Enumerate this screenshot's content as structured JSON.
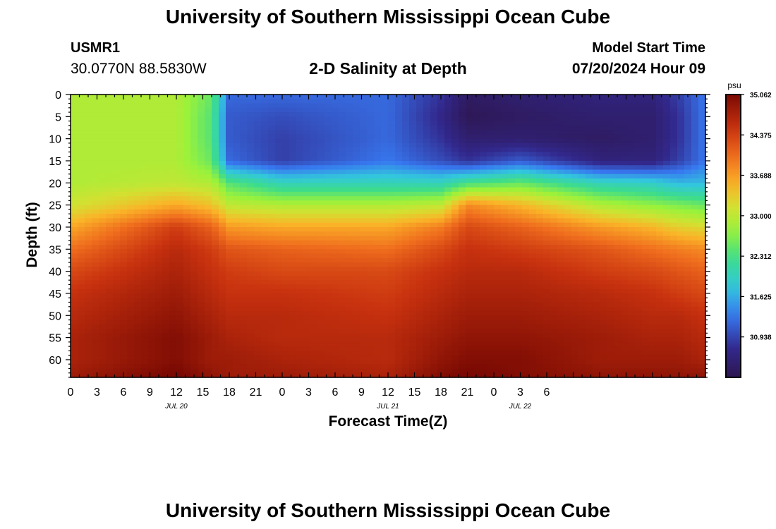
{
  "header": {
    "title": "University of Southern Mississippi Ocean Cube",
    "station_id": "USMR1",
    "station_coords": "30.0770N  88.5830W",
    "model_start_label": "Model Start Time",
    "model_start_value": "07/20/2024 Hour 09"
  },
  "footer": {
    "title": "University of Southern Mississippi Ocean Cube"
  },
  "colors": {
    "low": "#2b1a5a",
    "mid": "#9af23a",
    "high": "#7a0a03"
  },
  "chart_data": {
    "type": "heatmap",
    "title": "2-D Salinity at Depth",
    "xlabel": "Forecast Time(Z)",
    "ylabel": "Depth (ft)",
    "x_unit": "hours",
    "x_tick_labels": [
      "0",
      "3",
      "6",
      "9",
      "12",
      "15",
      "18",
      "21",
      "0",
      "3",
      "6",
      "9",
      "12",
      "15",
      "18",
      "21",
      "0",
      "3",
      "6"
    ],
    "date_labels": [
      {
        "label": "JUL 20",
        "at_tick_index": 4
      },
      {
        "label": "JUL 21",
        "at_tick_index": 12
      },
      {
        "label": "JUL 22",
        "at_tick_index": 17
      }
    ],
    "y_tick_labels": [
      "0",
      "5",
      "10",
      "15",
      "20",
      "25",
      "30",
      "35",
      "40",
      "45",
      "50",
      "55",
      "60"
    ],
    "ylim": [
      0,
      64
    ],
    "y_inverted": true,
    "colorbar": {
      "unit": "psu",
      "min": 30.25,
      "max": 35.062,
      "tick_labels": [
        "35.062",
        "34.375",
        "33.688",
        "33.000",
        "32.312",
        "31.625",
        "30.938"
      ]
    },
    "profile_depths_ft": [
      0,
      5,
      10,
      15,
      20,
      25,
      30,
      35,
      40,
      45,
      50,
      55,
      60,
      64
    ],
    "profile_times_hours": [
      0,
      12,
      16,
      18,
      24,
      36,
      42,
      45,
      51,
      60,
      66,
      69,
      72
    ],
    "salinity_psu": [
      [
        32.9,
        32.9,
        32.9,
        32.9,
        32.9,
        33.1,
        33.6,
        34.0,
        34.3,
        34.5,
        34.6,
        34.7,
        34.7,
        34.8
      ],
      [
        32.9,
        32.9,
        32.9,
        32.9,
        33.0,
        33.6,
        34.4,
        34.6,
        34.7,
        34.8,
        34.9,
        35.0,
        35.0,
        35.1
      ],
      [
        32.5,
        32.4,
        32.4,
        32.5,
        32.9,
        33.4,
        34.1,
        34.4,
        34.5,
        34.6,
        34.7,
        34.8,
        34.8,
        34.9
      ],
      [
        31.2,
        31.1,
        31.1,
        31.2,
        32.4,
        33.0,
        33.7,
        34.2,
        34.4,
        34.5,
        34.6,
        34.7,
        34.8,
        34.8
      ],
      [
        31.2,
        31.0,
        30.9,
        30.9,
        32.0,
        32.9,
        33.6,
        34.1,
        34.3,
        34.5,
        34.6,
        34.6,
        34.7,
        34.8
      ],
      [
        31.2,
        31.2,
        31.2,
        31.3,
        32.0,
        32.9,
        33.6,
        34.0,
        34.3,
        34.4,
        34.5,
        34.6,
        34.6,
        34.7
      ],
      [
        30.8,
        30.7,
        30.8,
        31.0,
        32.0,
        33.0,
        33.9,
        34.3,
        34.5,
        34.6,
        34.7,
        34.8,
        34.9,
        35.0
      ],
      [
        30.4,
        30.3,
        30.5,
        30.8,
        32.3,
        33.8,
        34.3,
        34.5,
        34.6,
        34.7,
        34.8,
        34.9,
        35.0,
        35.1
      ],
      [
        30.5,
        30.4,
        30.5,
        31.1,
        32.5,
        33.5,
        34.1,
        34.4,
        34.6,
        34.7,
        34.8,
        34.9,
        35.0,
        35.0
      ],
      [
        30.6,
        30.5,
        30.4,
        30.6,
        32.0,
        32.9,
        33.7,
        34.2,
        34.4,
        34.6,
        34.7,
        34.8,
        34.8,
        34.9
      ],
      [
        30.6,
        30.5,
        30.5,
        30.6,
        31.9,
        32.7,
        33.5,
        34.0,
        34.3,
        34.5,
        34.6,
        34.7,
        34.8,
        34.9
      ],
      [
        30.9,
        30.8,
        30.8,
        30.9,
        31.7,
        32.6,
        33.3,
        33.9,
        34.2,
        34.4,
        34.6,
        34.7,
        34.8,
        34.9
      ],
      [
        31.3,
        31.3,
        31.3,
        31.3,
        31.7,
        32.5,
        33.2,
        33.8,
        34.1,
        34.3,
        34.5,
        34.6,
        34.7,
        34.9
      ]
    ]
  }
}
